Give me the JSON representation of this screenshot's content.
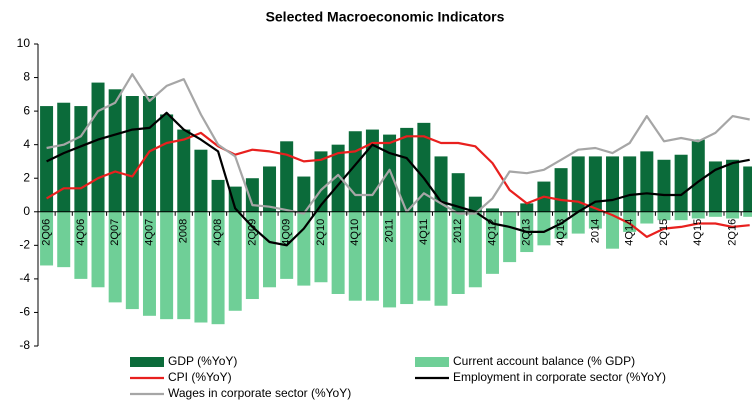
{
  "chart_data": {
    "type": "combo",
    "title": "Selected Macroeconomic Indicators",
    "categories": [
      "2Q06",
      null,
      "4Q06",
      null,
      "2Q07",
      null,
      "4Q07",
      null,
      "2008",
      null,
      "4Q08",
      null,
      "2Q09",
      null,
      "4Q09",
      null,
      "2Q10",
      null,
      "4Q10",
      null,
      "2011",
      null,
      "4Q11",
      null,
      "2012",
      null,
      "4Q12",
      null,
      "2Q13",
      null,
      "4Q13",
      null,
      "2014",
      null,
      "4Q14",
      null,
      "2Q15",
      null,
      "4Q15",
      null,
      "2Q16",
      null
    ],
    "ylim": [
      -8,
      10
    ],
    "yticks": [
      -8,
      -6,
      -4,
      -2,
      0,
      2,
      4,
      6,
      8,
      10
    ],
    "series": [
      {
        "name": "GDP (%YoY)",
        "type": "bar",
        "color": "#0b6b3a",
        "values": [
          6.3,
          6.5,
          6.3,
          7.7,
          7.3,
          6.9,
          6.9,
          5.8,
          4.9,
          3.7,
          1.9,
          1.5,
          2.0,
          2.7,
          4.2,
          2.1,
          3.6,
          4.0,
          4.8,
          4.9,
          4.6,
          5.0,
          5.3,
          3.3,
          2.3,
          0.9,
          0.2,
          -0.1,
          0.5,
          1.8,
          2.6,
          3.3,
          3.3,
          3.3,
          3.3,
          3.6,
          3.1,
          3.4,
          4.3,
          3.0,
          3.1,
          2.7
        ]
      },
      {
        "name": "Current account balance (% GDP)",
        "type": "bar",
        "color": "#6fcf97",
        "values": [
          -3.2,
          -3.3,
          -4.0,
          -4.5,
          -5.4,
          -5.8,
          -6.2,
          -6.4,
          -6.4,
          -6.6,
          -6.7,
          -5.9,
          -5.2,
          -4.5,
          -4.0,
          -4.4,
          -4.2,
          -4.9,
          -5.3,
          -5.3,
          -5.7,
          -5.5,
          -5.3,
          -5.6,
          -4.9,
          -4.5,
          -3.7,
          -3.0,
          -2.4,
          -2.0,
          -1.6,
          -1.3,
          -1.0,
          -2.2,
          -1.2,
          -0.7,
          -0.5,
          -0.5,
          -0.4,
          -0.3,
          -0.4,
          -0.3
        ]
      },
      {
        "name": "CPI (%YoY)",
        "type": "line",
        "color": "#e8201e",
        "values": [
          0.8,
          1.4,
          1.4,
          2.0,
          2.4,
          2.1,
          3.6,
          4.1,
          4.3,
          4.7,
          3.9,
          3.4,
          3.7,
          3.6,
          3.4,
          3.0,
          3.1,
          3.5,
          3.6,
          4.1,
          4.1,
          4.5,
          4.5,
          4.1,
          4.1,
          3.9,
          2.9,
          1.3,
          0.5,
          0.9,
          0.7,
          0.6,
          0.2,
          -0.2,
          -0.7,
          -1.5,
          -1.0,
          -0.9,
          -0.7,
          -0.7,
          -0.9,
          -0.8
        ]
      },
      {
        "name": "Employment in corporate sector (%YoY)",
        "type": "line",
        "color": "#000000",
        "values": [
          3.0,
          3.5,
          3.9,
          4.3,
          4.6,
          4.9,
          5.0,
          5.9,
          4.9,
          4.3,
          3.6,
          0.2,
          -0.9,
          -1.8,
          -2.0,
          -1.0,
          0.4,
          1.6,
          2.8,
          4.0,
          3.5,
          3.2,
          2.0,
          0.6,
          0.3,
          0.0,
          -0.7,
          -0.9,
          -1.2,
          -1.2,
          -0.7,
          0.0,
          0.6,
          0.7,
          1.0,
          1.1,
          1.0,
          1.0,
          1.8,
          2.5,
          2.9,
          3.1
        ]
      },
      {
        "name": "Wages in corporate sector (%YoY)",
        "type": "line",
        "color": "#a6a6a6",
        "values": [
          3.8,
          4.0,
          4.5,
          6.0,
          6.5,
          8.2,
          6.6,
          7.5,
          7.9,
          5.8,
          4.0,
          3.3,
          0.4,
          0.3,
          0.1,
          -0.1,
          1.3,
          2.2,
          1.0,
          1.0,
          2.5,
          0.0,
          1.1,
          0.5,
          -0.1,
          -0.1,
          0.8,
          2.4,
          2.3,
          2.5,
          3.1,
          3.7,
          3.8,
          3.5,
          4.1,
          5.7,
          4.2,
          4.4,
          4.2,
          4.7,
          5.7,
          5.5
        ]
      }
    ]
  }
}
